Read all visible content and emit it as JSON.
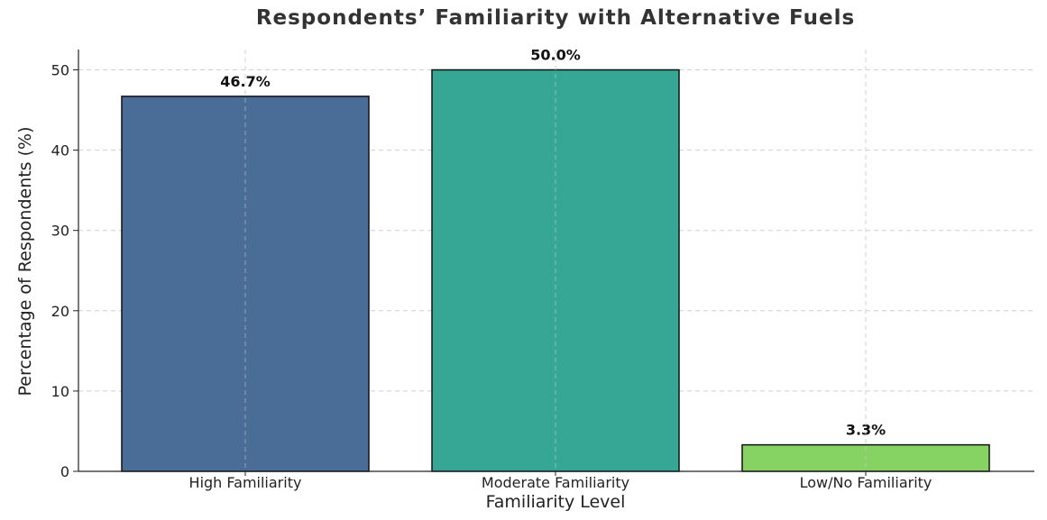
{
  "chart_data": {
    "type": "bar",
    "title": "Respondents’ Familiarity with Alternative Fuels",
    "xlabel": "Familiarity Level",
    "ylabel": "Percentage of Respondents (%)",
    "categories": [
      "High Familiarity",
      "Moderate Familiarity",
      "Low/No Familiarity"
    ],
    "values": [
      46.7,
      50.0,
      3.3
    ],
    "data_labels": [
      "46.7%",
      "50.0%",
      "3.3%"
    ],
    "colors": [
      "#4a6d98",
      "#35a794",
      "#86d364"
    ],
    "ylim": [
      0,
      52.5
    ],
    "yticks": [
      0,
      10,
      20,
      30,
      40,
      50
    ],
    "grid": true,
    "legend": "none"
  }
}
